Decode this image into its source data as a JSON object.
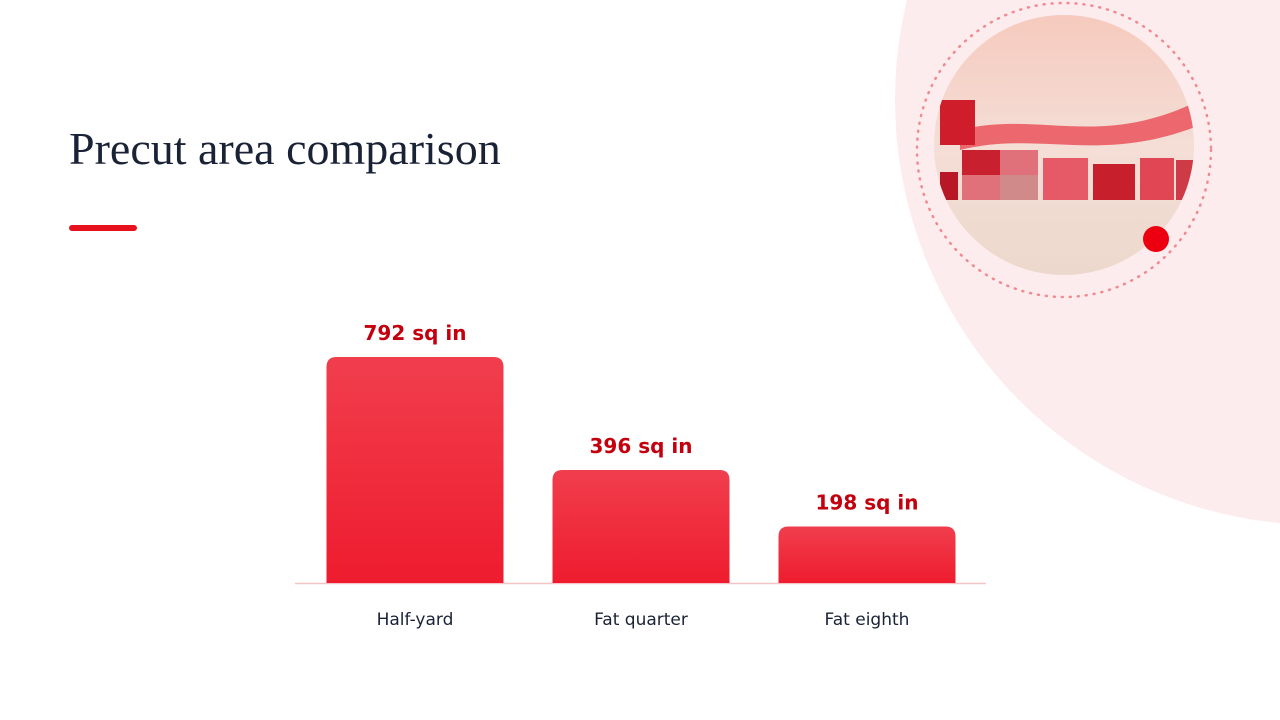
{
  "chart_data": {
    "type": "bar",
    "title": "Precut area comparison",
    "categories": [
      "Half-yard",
      "Fat quarter",
      "Fat eighth"
    ],
    "values": [
      792,
      396,
      198
    ],
    "value_labels": [
      "792 sq in",
      "396 sq in",
      "198 sq in"
    ],
    "color": "#ee1c2e"
  }
}
